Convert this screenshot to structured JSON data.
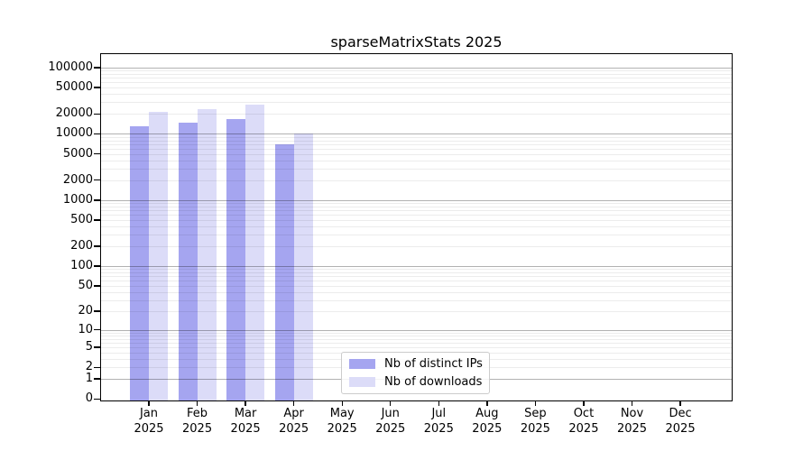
{
  "figure": {
    "title": "sparseMatrixStats 2025"
  },
  "legend": {
    "items": [
      {
        "label": "Nb of distinct IPs",
        "color": "#a5a5f0"
      },
      {
        "label": "Nb of downloads",
        "color": "#dcdcf8"
      }
    ]
  },
  "chart_data": {
    "type": "bar",
    "title": "sparseMatrixStats 2025",
    "scale": "log10(value+1)",
    "categories": [
      "Jan 2025",
      "Feb 2025",
      "Mar 2025",
      "Apr 2025",
      "May 2025",
      "Jun 2025",
      "Jul 2025",
      "Aug 2025",
      "Sep 2025",
      "Oct 2025",
      "Nov 2025",
      "Dec 2025"
    ],
    "series": [
      {
        "name": "Nb of distinct IPs",
        "color": "#a5a5f0",
        "values": [
          13200,
          14600,
          16600,
          7000,
          null,
          null,
          null,
          null,
          null,
          null,
          null,
          null
        ]
      },
      {
        "name": "Nb of downloads",
        "color": "#dcdcf8",
        "values": [
          21500,
          23400,
          27400,
          10200,
          null,
          null,
          null,
          null,
          null,
          null,
          null,
          null
        ]
      }
    ],
    "y_ticks": [
      100000,
      50000,
      20000,
      10000,
      5000,
      2000,
      1000,
      500,
      200,
      100,
      50,
      20,
      10,
      5,
      2,
      1,
      0
    ],
    "ylim": [
      0,
      160000
    ],
    "xlabel": "",
    "ylabel": "",
    "grid": true,
    "grid_major_color": "#b3b3b3",
    "grid_minor_color": "#ececec",
    "legend_position": "lower center"
  }
}
